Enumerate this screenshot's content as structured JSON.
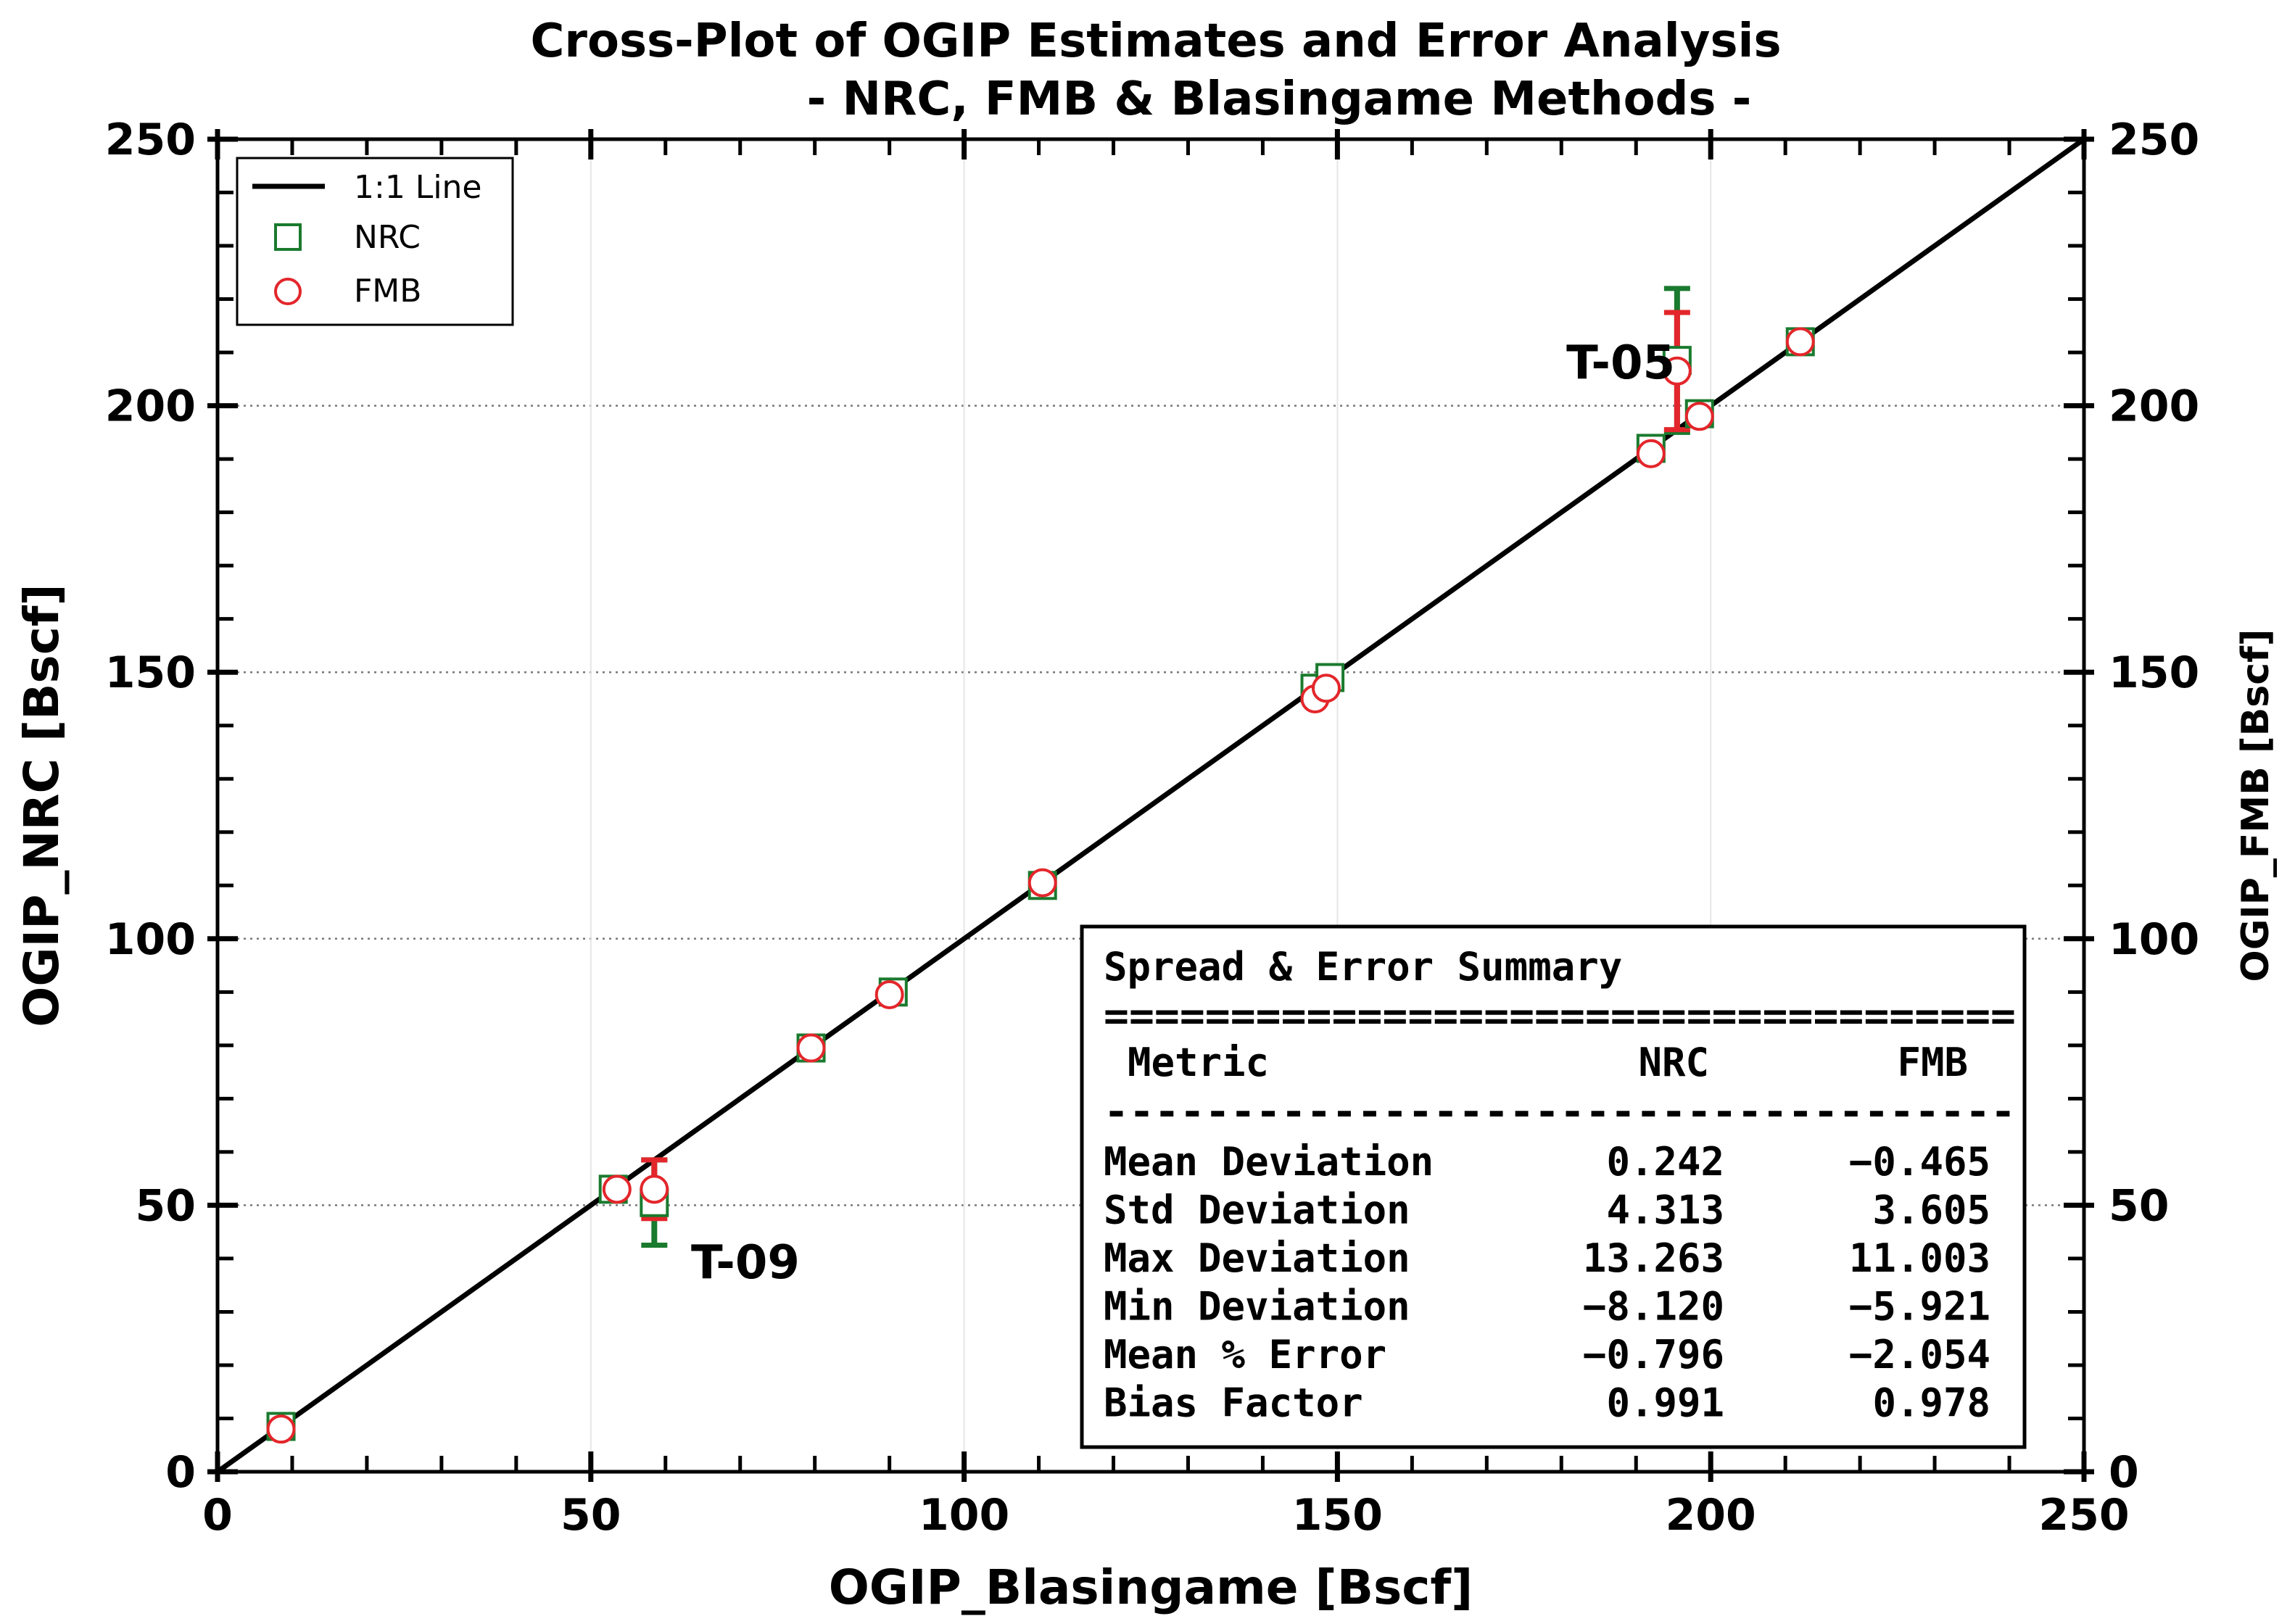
{
  "chart_data": {
    "type": "scatter",
    "title": "Cross-Plot of OGIP Estimates and Error Analysis",
    "subtitle": "- NRC, FMB & Blasingame Methods -",
    "xlabel": "OGIP_Blasingame [Bscf]",
    "ylabel": "OGIP_NRC [Bscf]",
    "ylabel_right": "OGIP_FMB [Bscf]",
    "xlim": [
      0,
      250
    ],
    "ylim": [
      0,
      250
    ],
    "x_ticks": [
      "0",
      "50",
      "100",
      "150",
      "200",
      "250"
    ],
    "y_ticks": [
      "0",
      "50",
      "100",
      "150",
      "200",
      "250"
    ],
    "y_ticks_right": [
      "0",
      "50",
      "100",
      "150",
      "200",
      "250"
    ],
    "grid": "horizontal dotted",
    "legend_position": "top-left",
    "legend": [
      {
        "label": "1:1 Line",
        "marker": "line",
        "color": "#000000"
      },
      {
        "label": "NRC",
        "marker": "square",
        "color": "#1a7a2e"
      },
      {
        "label": "FMB",
        "marker": "circle",
        "color": "#e3262b"
      }
    ],
    "series": [
      {
        "name": "NRC",
        "color": "#1a7a2e",
        "points": [
          {
            "x": 8.5,
            "y": 8.5
          },
          {
            "x": 53.0,
            "y": 53.0
          },
          {
            "x": 58.5,
            "y": 50.5,
            "err": 8.0
          },
          {
            "x": 79.5,
            "y": 79.5
          },
          {
            "x": 90.5,
            "y": 90.0
          },
          {
            "x": 110.5,
            "y": 110.0
          },
          {
            "x": 147.0,
            "y": 147.0
          },
          {
            "x": 149.0,
            "y": 149.0
          },
          {
            "x": 192.0,
            "y": 192.0
          },
          {
            "x": 195.5,
            "y": 208.5,
            "err": 13.5
          },
          {
            "x": 198.5,
            "y": 198.5
          },
          {
            "x": 212.0,
            "y": 212.0
          }
        ]
      },
      {
        "name": "FMB",
        "color": "#e3262b",
        "points": [
          {
            "x": 8.5,
            "y": 8.0
          },
          {
            "x": 53.5,
            "y": 53.0
          },
          {
            "x": 58.5,
            "y": 53.0,
            "err": 5.5
          },
          {
            "x": 79.5,
            "y": 79.5
          },
          {
            "x": 90.0,
            "y": 89.5
          },
          {
            "x": 110.5,
            "y": 110.5
          },
          {
            "x": 147.0,
            "y": 145.0
          },
          {
            "x": 148.5,
            "y": 147.0
          },
          {
            "x": 192.0,
            "y": 191.0
          },
          {
            "x": 195.5,
            "y": 206.5,
            "err": 11.0
          },
          {
            "x": 198.5,
            "y": 198.0
          },
          {
            "x": 212.0,
            "y": 212.0
          }
        ]
      }
    ],
    "annotations": [
      {
        "text": "T-05",
        "x": 195.5,
        "y": 206.5
      },
      {
        "text": "T-09",
        "x": 58.5,
        "y": 50.5
      }
    ],
    "summary_box": {
      "title": "Spread & Error Summary",
      "double_rule": "====================================",
      "single_rule": "------------------------------------",
      "headers": [
        "Metric",
        "NRC",
        "FMB"
      ],
      "rows": [
        [
          "Mean Deviation",
          "0.242",
          "−0.465"
        ],
        [
          "Std Deviation",
          "4.313",
          "3.605"
        ],
        [
          "Max Deviation",
          "13.263",
          "11.003"
        ],
        [
          "Min Deviation",
          "−8.120",
          "−5.921"
        ],
        [
          "Mean % Error",
          "−0.796",
          "−2.054"
        ],
        [
          "Bias Factor",
          "0.991",
          "0.978"
        ]
      ]
    }
  }
}
